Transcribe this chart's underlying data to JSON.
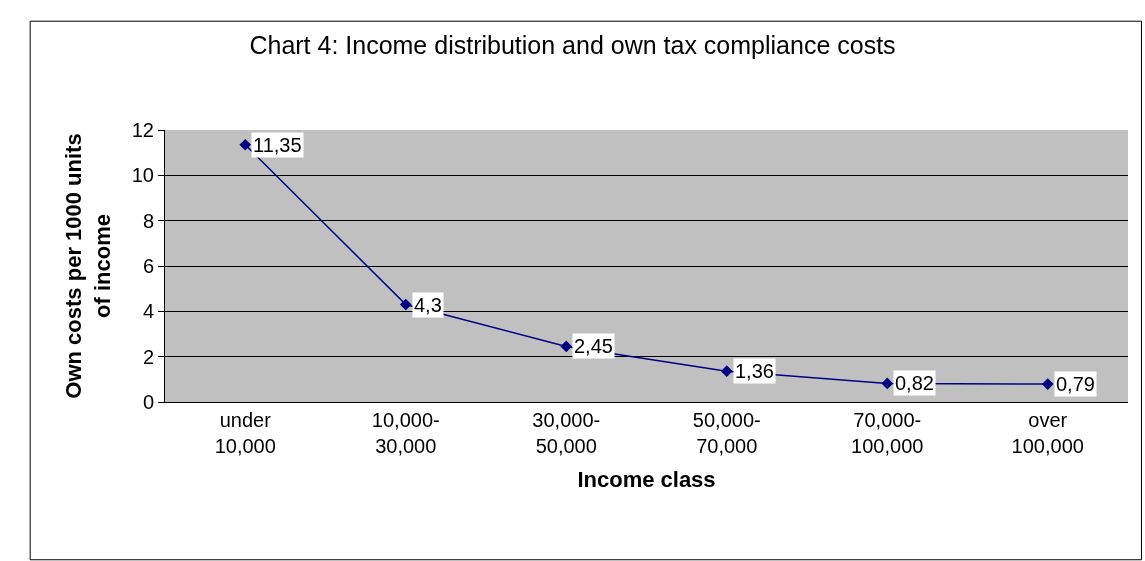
{
  "chart_data": {
    "type": "line",
    "title": "Chart 4: Income distribution and own tax compliance costs",
    "xlabel": "Income class",
    "ylabel": "Own costs per 1000 units\nof income",
    "categories": [
      "under\n10,000",
      "10,000-\n30,000",
      "30,000-\n50,000",
      "50,000-\n70,000",
      "70,000-\n100,000",
      "over\n100,000"
    ],
    "series": [
      {
        "color": "#000080",
        "values": [
          11.35,
          4.3,
          2.45,
          1.36,
          0.82,
          0.79
        ],
        "value_labels": [
          "11,35",
          "4,3",
          "2,45",
          "1,36",
          "0,82",
          "0,79"
        ]
      }
    ],
    "ylim": [
      0,
      12
    ],
    "yticks": [
      0,
      2,
      4,
      6,
      8,
      10,
      12
    ],
    "grid": "y",
    "legend": false,
    "marker": "diamond",
    "line_style": "solid"
  }
}
